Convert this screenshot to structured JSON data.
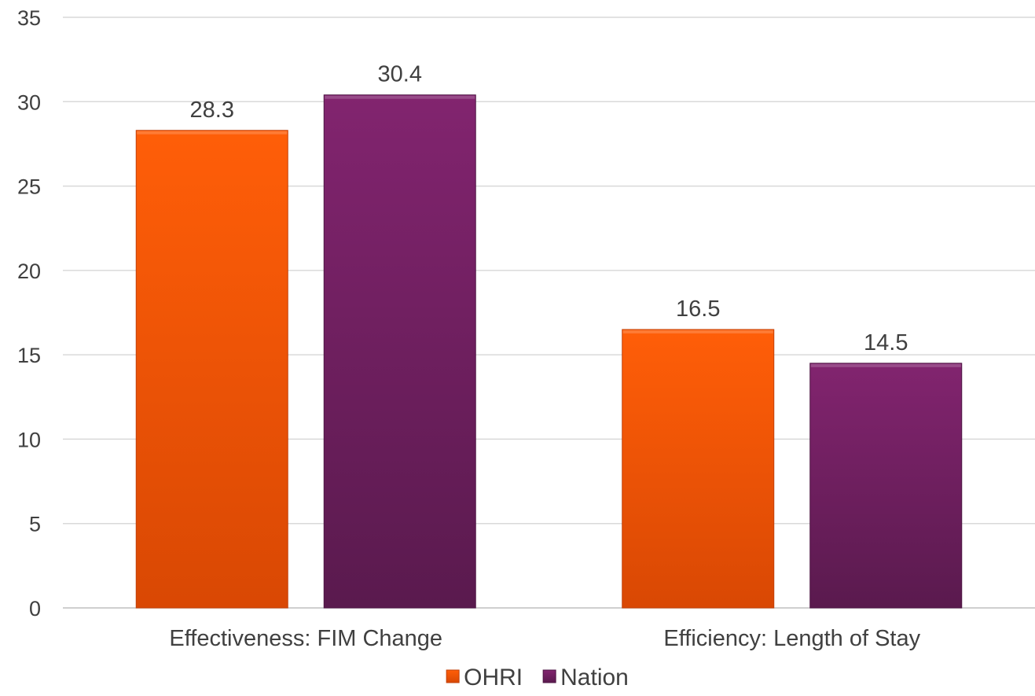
{
  "chart_data": {
    "type": "bar",
    "title": "",
    "xlabel": "",
    "ylabel": "",
    "categories": [
      "Effectiveness: FIM Change",
      "Efficiency: Length of Stay"
    ],
    "series": [
      {
        "name": "OHRI",
        "values": [
          28.3,
          16.5
        ],
        "color": "#f25a0a"
      },
      {
        "name": "Nation",
        "values": [
          30.4,
          14.5
        ],
        "color": "#6e1e5e"
      }
    ],
    "data_labels": [
      [
        "28.3",
        "16.5"
      ],
      [
        "30.4",
        "14.5"
      ]
    ],
    "ylim": [
      0,
      35
    ],
    "yticks": [
      0,
      5,
      10,
      15,
      20,
      25,
      30,
      35
    ],
    "grid": true,
    "legend_position": "bottom"
  }
}
